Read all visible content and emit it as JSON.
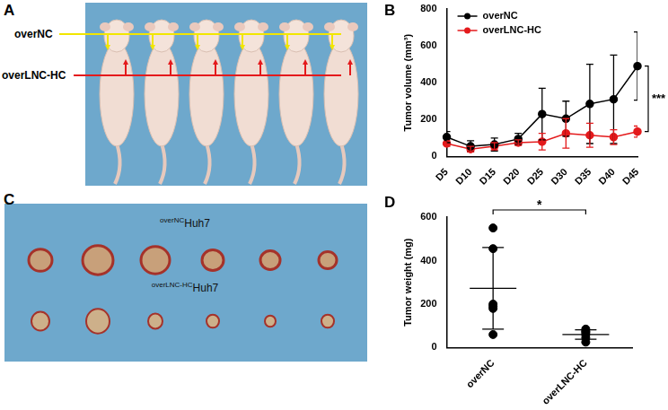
{
  "panels": [
    {
      "letter": "A",
      "labels": [
        "overNC",
        "overLNC-HC"
      ]
    },
    {
      "letter": "C",
      "labels": [
        {
          "superscript": "overNC",
          "text": "Huh7"
        },
        {
          "superscript": "overLNC-HC",
          "text": "Huh7"
        }
      ]
    }
  ],
  "chart_data": [
    {
      "panel": "B",
      "type": "line",
      "categories": [
        "D5",
        "D10",
        "D15",
        "D20",
        "D25",
        "D30",
        "D35",
        "D40",
        "D45"
      ],
      "series": [
        {
          "name": "overNC",
          "color": "#000000",
          "marker": "circle",
          "values": [
            105,
            55,
            65,
            95,
            230,
            205,
            285,
            310,
            490
          ],
          "errors": [
            30,
            30,
            35,
            30,
            140,
            95,
            215,
            240,
            185
          ]
        },
        {
          "name": "overLNC-HC",
          "color": "#e41a1c",
          "marker": "circle",
          "values": [
            70,
            40,
            55,
            75,
            80,
            125,
            115,
            105,
            135
          ],
          "errors": [
            15,
            15,
            20,
            15,
            45,
            80,
            65,
            40,
            30
          ]
        }
      ],
      "y_label": "Tumor volume (mm³)",
      "ylim": [
        0,
        800
      ],
      "yticks": [
        0,
        200,
        400,
        600,
        800
      ],
      "grid": false,
      "legend": "upper left",
      "annotations": [
        {
          "text": "***",
          "x": "D45"
        }
      ]
    },
    {
      "panel": "D",
      "type": "scatter",
      "categories": [
        "overNC",
        "overLNC-HC"
      ],
      "points": [
        [
          550,
          455,
          200,
          190,
          180,
          60
        ],
        [
          85,
          75,
          70,
          60,
          45,
          25
        ]
      ],
      "mean": [
        272.5,
        60
      ],
      "sd": [
        188,
        22
      ],
      "color": "#000000",
      "marker": "circle",
      "y_label": "Tumor weight (mg)",
      "ylim": [
        0,
        600
      ],
      "yticks": [
        0,
        200,
        400,
        600
      ],
      "grid": false,
      "annotations": [
        {
          "text": "*",
          "between": [
            "overNC",
            "overLNC-HC"
          ]
        }
      ]
    }
  ]
}
